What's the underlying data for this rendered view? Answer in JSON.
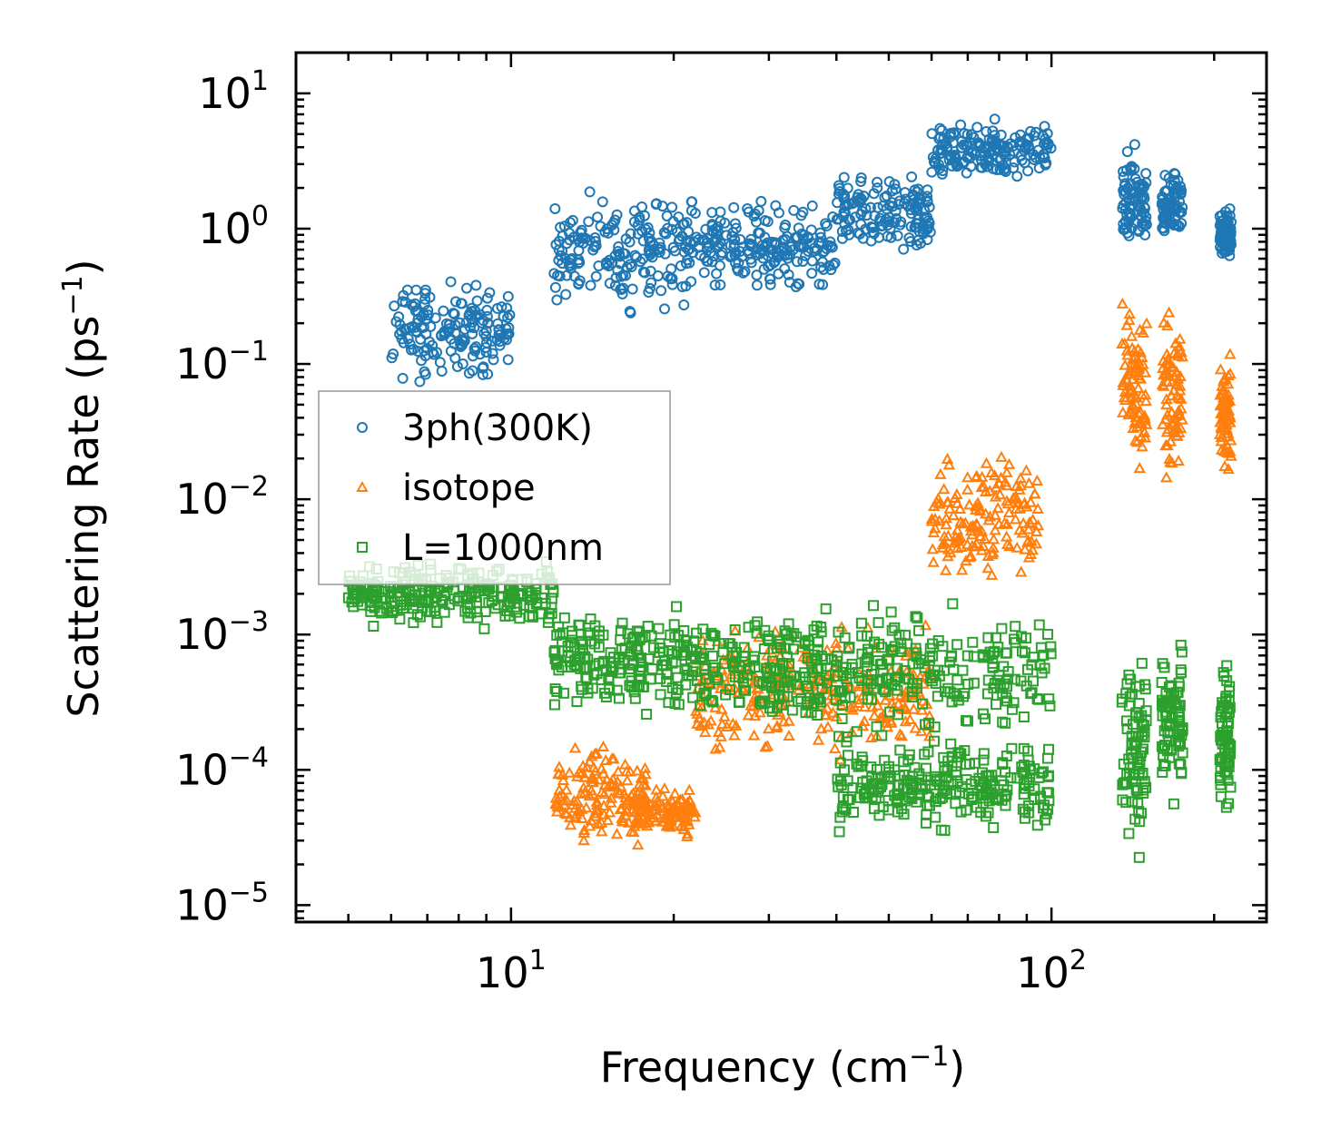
{
  "chart_data": {
    "type": "scatter",
    "title": "",
    "xlabel": "Frequency",
    "xlabel_unit_base": "cm",
    "xlabel_unit_exp": "−1",
    "ylabel": "Scattering Rate",
    "ylabel_unit_base": "ps",
    "ylabel_unit_exp": "−1",
    "xscale": "log",
    "yscale": "log",
    "xlim": [
      4.0,
      250.0
    ],
    "ylim": [
      7.5e-06,
      20.0
    ],
    "x_ticks": [
      {
        "value": 10,
        "base": "10",
        "exp": "1"
      },
      {
        "value": 100,
        "base": "10",
        "exp": "2"
      }
    ],
    "y_ticks": [
      {
        "value": 10,
        "base": "10",
        "exp": "1"
      },
      {
        "value": 1,
        "base": "10",
        "exp": "0"
      },
      {
        "value": 0.1,
        "base": "10",
        "exp": "−1"
      },
      {
        "value": 0.01,
        "base": "10",
        "exp": "−2"
      },
      {
        "value": 0.001,
        "base": "10",
        "exp": "−3"
      },
      {
        "value": 0.0001,
        "base": "10",
        "exp": "−4"
      },
      {
        "value": 1e-05,
        "base": "10",
        "exp": "−5"
      }
    ],
    "legend_position": "center-left",
    "series": [
      {
        "name": "3ph(300K)",
        "marker": "circle",
        "color": "#1f77b4",
        "groups": [
          {
            "xr": [
              6,
              10
            ],
            "yr": [
              0.06,
              0.5
            ]
          },
          {
            "xr": [
              12,
              22
            ],
            "yr": [
              0.2,
              2.5
            ]
          },
          {
            "xr": [
              22,
              40
            ],
            "yr": [
              0.3,
              1.8
            ]
          },
          {
            "xr": [
              40,
              60
            ],
            "yr": [
              0.5,
              3.0
            ]
          },
          {
            "xr": [
              60,
              100
            ],
            "yr": [
              2.0,
              7.0
            ]
          },
          {
            "xr": [
              135,
              150
            ],
            "yr": [
              0.5,
              5.0
            ]
          },
          {
            "xr": [
              160,
              175
            ],
            "yr": [
              0.8,
              3.0
            ]
          },
          {
            "xr": [
              205,
              215
            ],
            "yr": [
              0.5,
              1.8
            ]
          }
        ]
      },
      {
        "name": "isotope",
        "marker": "triangle",
        "color": "#ff7f0e",
        "groups": [
          {
            "xr": [
              12,
              18
            ],
            "yr": [
              2e-05,
              0.0002
            ]
          },
          {
            "xr": [
              17,
              22
            ],
            "yr": [
              3e-05,
              8e-05
            ]
          },
          {
            "xr": [
              22,
              60
            ],
            "yr": [
              0.0001,
              0.0015
            ]
          },
          {
            "xr": [
              60,
              95
            ],
            "yr": [
              0.002,
              0.03
            ]
          },
          {
            "xr": [
              135,
              150
            ],
            "yr": [
              0.01,
              0.4
            ]
          },
          {
            "xr": [
              160,
              175
            ],
            "yr": [
              0.01,
              0.3
            ]
          },
          {
            "xr": [
              205,
              215
            ],
            "yr": [
              0.01,
              0.15
            ]
          }
        ]
      },
      {
        "name": "L=1000nm",
        "marker": "square",
        "color": "#2ca02c",
        "groups": [
          {
            "xr": [
              5,
              12
            ],
            "yr": [
              0.001,
              0.004
            ]
          },
          {
            "xr": [
              12,
              22
            ],
            "yr": [
              0.0002,
              0.002
            ]
          },
          {
            "xr": [
              22,
              100
            ],
            "yr": [
              0.00015,
              0.002
            ]
          },
          {
            "xr": [
              40,
              100
            ],
            "yr": [
              3e-05,
              0.0002
            ]
          },
          {
            "xr": [
              135,
              150
            ],
            "yr": [
              2e-05,
              0.001
            ]
          },
          {
            "xr": [
              160,
              175
            ],
            "yr": [
              5e-05,
              0.001
            ]
          },
          {
            "xr": [
              205,
              215
            ],
            "yr": [
              3e-05,
              0.001
            ]
          }
        ]
      }
    ]
  }
}
